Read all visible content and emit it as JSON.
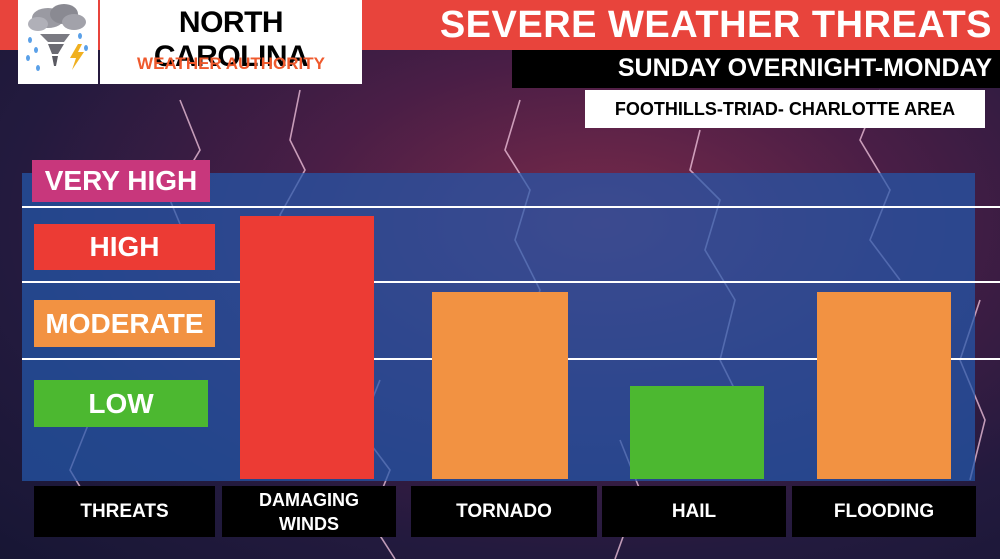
{
  "header": {
    "brand_title": "NORTH CAROLINA",
    "brand_subtitle": "WEATHER AUTHORITY",
    "title": "SEVERE WEATHER THREATS",
    "subtitle": "SUNDAY OVERNIGHT-MONDAY",
    "area": "FOOTHILLS-TRIAD- CHARLOTTE AREA",
    "logo_icon": "storm-tornado-icon"
  },
  "colors": {
    "header_red": "#e8443c",
    "very_high": "#c8377c",
    "high": "#ec3b34",
    "moderate": "#f29242",
    "low": "#4cb830",
    "plot_bg": "#2458aa",
    "brand_sub": "#ef5a2d"
  },
  "chart_data": {
    "type": "bar",
    "scale_label": "THREATS",
    "levels": [
      "LOW",
      "MODERATE",
      "HIGH",
      "VERY HIGH"
    ],
    "categories": [
      "DAMAGING WINDS",
      "TORNADO",
      "HAIL",
      "FLOODING"
    ],
    "values": [
      "HIGH",
      "MODERATE",
      "LOW",
      "MODERATE"
    ],
    "grid": true,
    "legend": "left"
  }
}
